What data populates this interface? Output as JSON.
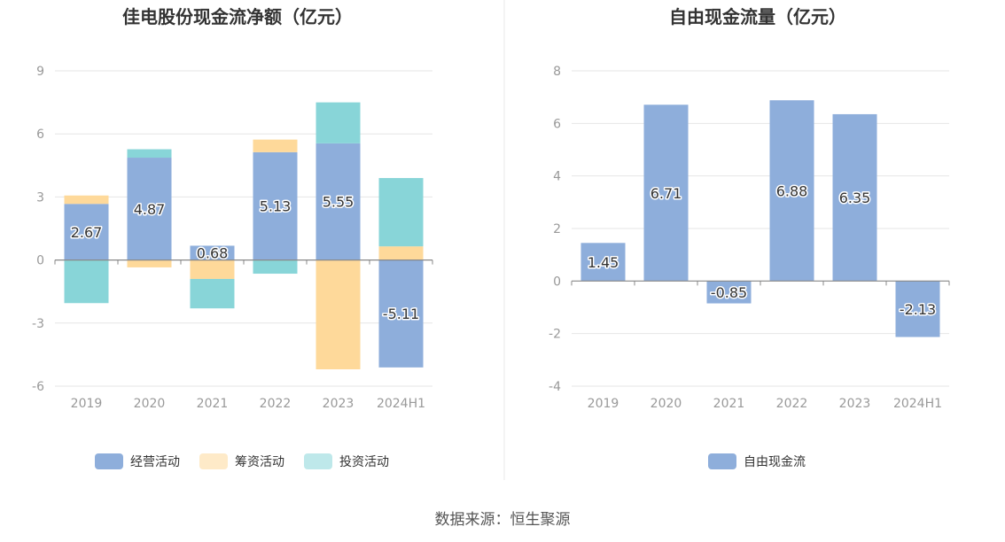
{
  "source_text": "数据来源：恒生聚源",
  "colors": {
    "operating": "#8eaedb",
    "financing": "#fed99a",
    "investing": "#88d5d8",
    "fcf": "#8eaedb"
  },
  "chart_data": [
    {
      "type": "bar",
      "stacked": true,
      "title": "佳电股份现金流净额（亿元）",
      "categories": [
        "2019",
        "2020",
        "2021",
        "2022",
        "2023",
        "2024H1"
      ],
      "ylim": [
        -6,
        9
      ],
      "yticks": [
        -6,
        -3,
        0,
        3,
        6,
        9
      ],
      "grid": true,
      "legend_position": "bottom",
      "series": [
        {
          "name": "经营活动",
          "values": [
            2.67,
            4.87,
            0.68,
            5.13,
            5.55,
            -5.11
          ],
          "labeled": true
        },
        {
          "name": "筹资活动",
          "values": [
            0.4,
            -0.35,
            -0.9,
            0.6,
            -5.2,
            0.65
          ],
          "labeled": false
        },
        {
          "name": "投资活动",
          "values": [
            -2.05,
            0.4,
            -1.4,
            -0.65,
            1.95,
            3.25
          ],
          "labeled": false
        }
      ]
    },
    {
      "type": "bar",
      "title": "自由现金流量（亿元）",
      "categories": [
        "2019",
        "2020",
        "2021",
        "2022",
        "2023",
        "2024H1"
      ],
      "ylim": [
        -4,
        8
      ],
      "yticks": [
        -4,
        -2,
        0,
        2,
        4,
        6,
        8
      ],
      "grid": true,
      "legend_position": "bottom",
      "series": [
        {
          "name": "自由现金流",
          "values": [
            1.45,
            6.71,
            -0.85,
            6.88,
            6.35,
            -2.13
          ],
          "labeled": true
        }
      ]
    }
  ]
}
